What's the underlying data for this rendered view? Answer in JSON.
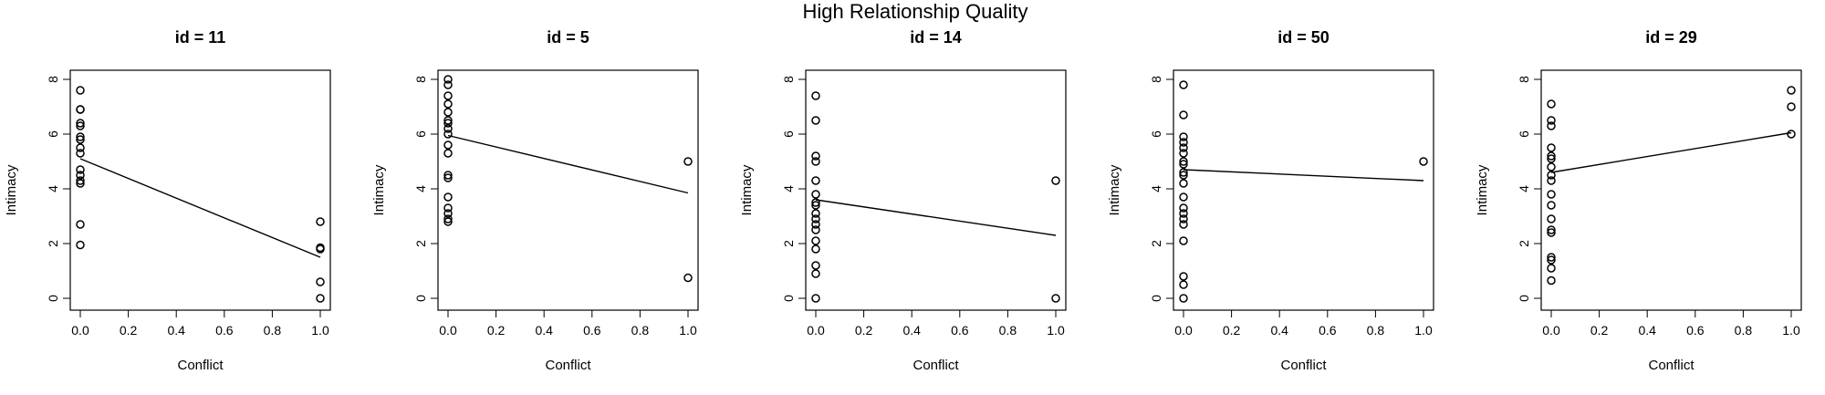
{
  "figure": {
    "title": "High Relationship Quality"
  },
  "chart_data": [
    {
      "type": "scatter",
      "title": "id = 11",
      "xlabel": "Conflict",
      "ylabel": "Intimacy",
      "xlim": [
        0,
        1
      ],
      "ylim": [
        0,
        8
      ],
      "xticks": [
        0.0,
        0.2,
        0.4,
        0.6,
        0.8,
        1.0
      ],
      "yticks": [
        0,
        2,
        4,
        6,
        8
      ],
      "grid": false,
      "points": [
        [
          0,
          7.6
        ],
        [
          0,
          6.9
        ],
        [
          0,
          6.9
        ],
        [
          0,
          6.4
        ],
        [
          0,
          6.3
        ],
        [
          0,
          5.9
        ],
        [
          0,
          5.8
        ],
        [
          0,
          5.5
        ],
        [
          0,
          5.3
        ],
        [
          0,
          4.7
        ],
        [
          0,
          4.5
        ],
        [
          0,
          4.3
        ],
        [
          0,
          4.2
        ],
        [
          0,
          2.7
        ],
        [
          0,
          1.95
        ],
        [
          1,
          2.8
        ],
        [
          1,
          1.85
        ],
        [
          1,
          1.8
        ],
        [
          1,
          0.6
        ],
        [
          1,
          0.0
        ]
      ],
      "fit": {
        "x": [
          0,
          1
        ],
        "y": [
          5.1,
          1.5
        ]
      }
    },
    {
      "type": "scatter",
      "title": "id = 5",
      "xlabel": "Conflict",
      "ylabel": "Intimacy",
      "xlim": [
        0,
        1
      ],
      "ylim": [
        0,
        8
      ],
      "xticks": [
        0.0,
        0.2,
        0.4,
        0.6,
        0.8,
        1.0
      ],
      "yticks": [
        0,
        2,
        4,
        6,
        8
      ],
      "grid": false,
      "points": [
        [
          0,
          8.0
        ],
        [
          0,
          7.8
        ],
        [
          0,
          7.4
        ],
        [
          0,
          7.1
        ],
        [
          0,
          6.8
        ],
        [
          0,
          6.5
        ],
        [
          0,
          6.4
        ],
        [
          0,
          6.2
        ],
        [
          0,
          6.0
        ],
        [
          0,
          5.6
        ],
        [
          0,
          5.3
        ],
        [
          0,
          4.5
        ],
        [
          0,
          4.4
        ],
        [
          0,
          3.7
        ],
        [
          0,
          3.3
        ],
        [
          0,
          3.1
        ],
        [
          0,
          2.9
        ],
        [
          0,
          2.8
        ],
        [
          1,
          5.0
        ],
        [
          1,
          0.75
        ]
      ],
      "fit": {
        "x": [
          0,
          1
        ],
        "y": [
          5.95,
          3.85
        ]
      }
    },
    {
      "type": "scatter",
      "title": "id = 14",
      "xlabel": "Conflict",
      "ylabel": "Intimacy",
      "xlim": [
        0,
        1
      ],
      "ylim": [
        0,
        8
      ],
      "xticks": [
        0.0,
        0.2,
        0.4,
        0.6,
        0.8,
        1.0
      ],
      "yticks": [
        0,
        2,
        4,
        6,
        8
      ],
      "grid": false,
      "points": [
        [
          0,
          7.4
        ],
        [
          0,
          6.5
        ],
        [
          0,
          5.2
        ],
        [
          0,
          5.0
        ],
        [
          0,
          4.3
        ],
        [
          0,
          3.8
        ],
        [
          0,
          3.5
        ],
        [
          0,
          3.4
        ],
        [
          0,
          3.1
        ],
        [
          0,
          2.9
        ],
        [
          0,
          2.7
        ],
        [
          0,
          2.5
        ],
        [
          0,
          2.1
        ],
        [
          0,
          1.8
        ],
        [
          0,
          1.2
        ],
        [
          0,
          0.9
        ],
        [
          0,
          0.0
        ],
        [
          1,
          4.3
        ],
        [
          1,
          0.0
        ]
      ],
      "fit": {
        "x": [
          0,
          1
        ],
        "y": [
          3.6,
          2.3
        ]
      }
    },
    {
      "type": "scatter",
      "title": "id = 50",
      "xlabel": "Conflict",
      "ylabel": "Intimacy",
      "xlim": [
        0,
        1
      ],
      "ylim": [
        0,
        8
      ],
      "xticks": [
        0.0,
        0.2,
        0.4,
        0.6,
        0.8,
        1.0
      ],
      "yticks": [
        0,
        2,
        4,
        6,
        8
      ],
      "grid": false,
      "points": [
        [
          0,
          7.8
        ],
        [
          0,
          6.7
        ],
        [
          0,
          5.9
        ],
        [
          0,
          5.7
        ],
        [
          0,
          5.5
        ],
        [
          0,
          5.3
        ],
        [
          0,
          5.0
        ],
        [
          0,
          4.9
        ],
        [
          0,
          4.6
        ],
        [
          0,
          4.5
        ],
        [
          0,
          4.2
        ],
        [
          0,
          3.7
        ],
        [
          0,
          3.3
        ],
        [
          0,
          3.1
        ],
        [
          0,
          2.9
        ],
        [
          0,
          2.7
        ],
        [
          0,
          2.1
        ],
        [
          0,
          0.8
        ],
        [
          0,
          0.5
        ],
        [
          0,
          0.0
        ],
        [
          1,
          5.0
        ]
      ],
      "fit": {
        "x": [
          0,
          1
        ],
        "y": [
          4.7,
          4.3
        ]
      }
    },
    {
      "type": "scatter",
      "title": "id = 29",
      "xlabel": "Conflict",
      "ylabel": "Intimacy",
      "xlim": [
        0,
        1
      ],
      "ylim": [
        0,
        8
      ],
      "xticks": [
        0.0,
        0.2,
        0.4,
        0.6,
        0.8,
        1.0
      ],
      "yticks": [
        0,
        2,
        4,
        6,
        8
      ],
      "grid": false,
      "points": [
        [
          0,
          7.1
        ],
        [
          0,
          6.5
        ],
        [
          0,
          6.3
        ],
        [
          0,
          5.5
        ],
        [
          0,
          5.2
        ],
        [
          0,
          5.1
        ],
        [
          0,
          4.8
        ],
        [
          0,
          4.5
        ],
        [
          0,
          4.3
        ],
        [
          0,
          3.8
        ],
        [
          0,
          3.4
        ],
        [
          0,
          2.9
        ],
        [
          0,
          2.5
        ],
        [
          0,
          2.4
        ],
        [
          0,
          1.5
        ],
        [
          0,
          1.4
        ],
        [
          0,
          1.1
        ],
        [
          0,
          0.65
        ],
        [
          1,
          7.6
        ],
        [
          1,
          7.0
        ],
        [
          1,
          6.0
        ]
      ],
      "fit": {
        "x": [
          0,
          1
        ],
        "y": [
          4.6,
          6.05
        ]
      }
    }
  ]
}
